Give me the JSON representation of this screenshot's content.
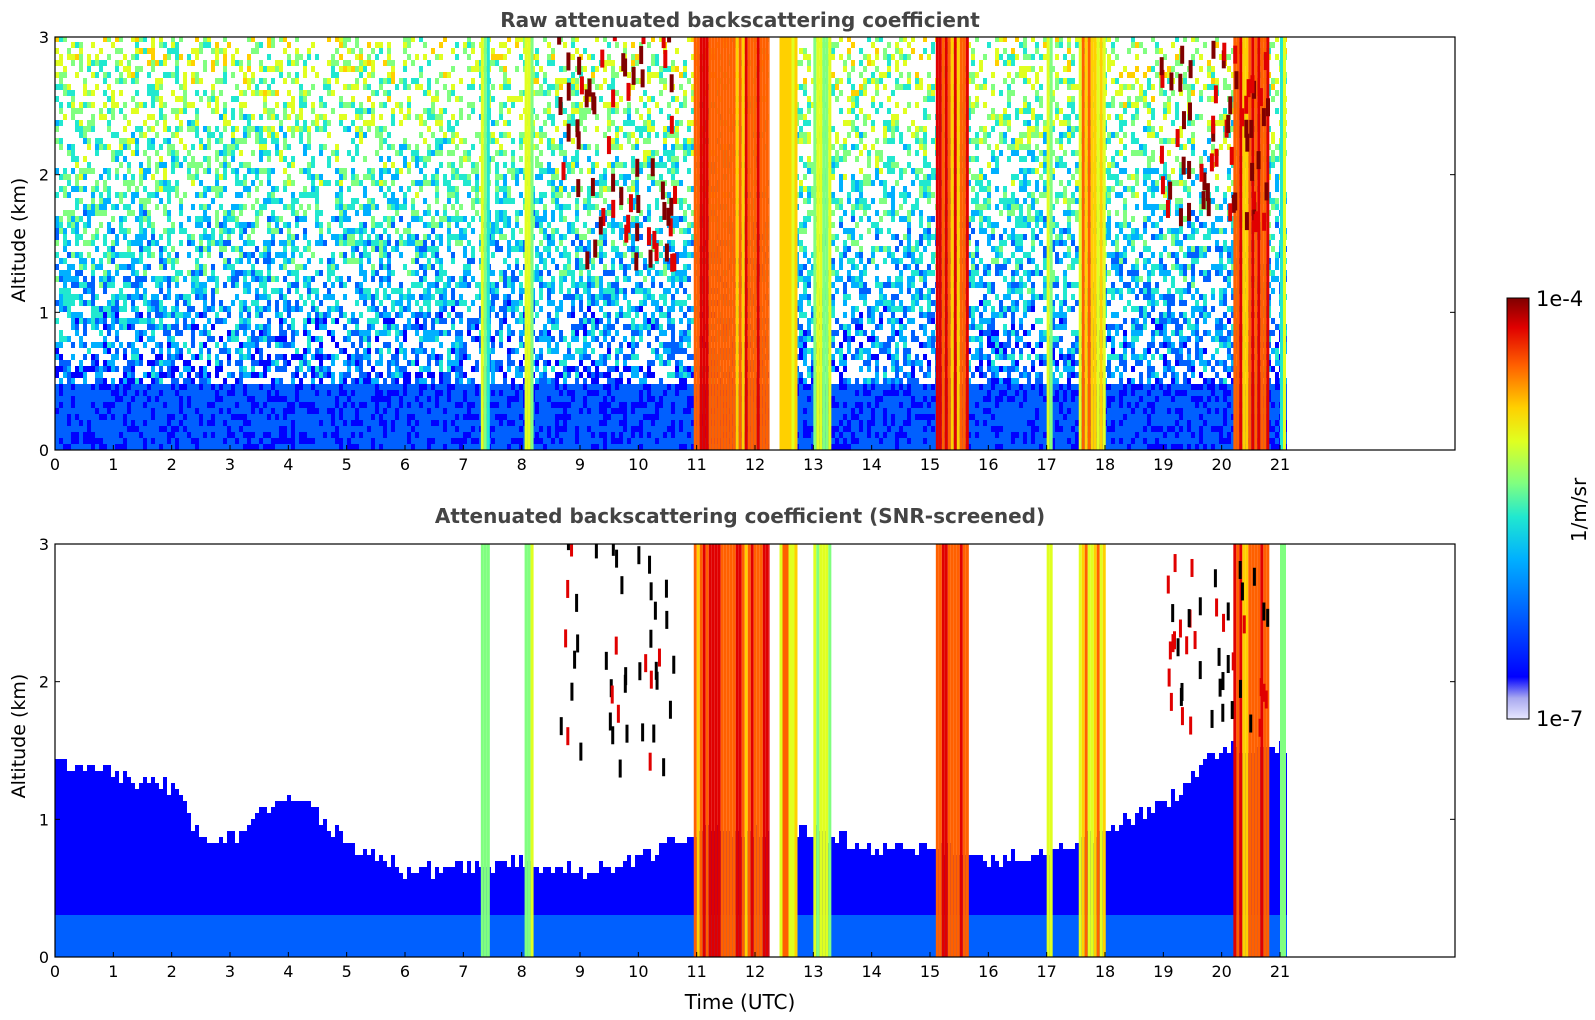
{
  "chart_data": [
    {
      "type": "heatmap",
      "title": "Raw attenuated backscattering coefficient",
      "xlabel": "",
      "ylabel": "Altitude (km)",
      "xlim": [
        0,
        24
      ],
      "ylim": [
        0,
        3
      ],
      "xticks": [
        "0",
        "1",
        "2",
        "3",
        "4",
        "5",
        "6",
        "7",
        "8",
        "9",
        "10",
        "11",
        "12",
        "13",
        "14",
        "15",
        "16",
        "17",
        "18",
        "19",
        "20",
        "21"
      ],
      "yticks": [
        "0",
        "1",
        "2",
        "3"
      ],
      "data_end_time": 21.1,
      "features": [
        {
          "name": "boundary-layer",
          "t0": 0.0,
          "t1": 21.1,
          "top_km": 0.45,
          "level": "low"
        },
        {
          "name": "noise-field",
          "t0": 0.0,
          "t1": 21.1,
          "level": "noisy"
        },
        {
          "name": "precip-shaft",
          "t0": 7.3,
          "t1": 7.45,
          "level": "medium"
        },
        {
          "name": "precip-shaft",
          "t0": 8.05,
          "t1": 8.2,
          "level": "medium"
        },
        {
          "name": "precip-shaft",
          "t0": 10.95,
          "t1": 12.25,
          "level": "high"
        },
        {
          "name": "gap",
          "t0": 12.25,
          "t1": 12.42,
          "level": "none"
        },
        {
          "name": "precip-shaft",
          "t0": 12.42,
          "t1": 12.7,
          "level": "medium-high"
        },
        {
          "name": "precip-shaft",
          "t0": 13.0,
          "t1": 13.3,
          "level": "medium"
        },
        {
          "name": "precip-shaft",
          "t0": 15.1,
          "t1": 15.65,
          "level": "high"
        },
        {
          "name": "precip-shaft",
          "t0": 17.0,
          "t1": 17.1,
          "level": "medium"
        },
        {
          "name": "precip-shaft",
          "t0": 17.55,
          "t1": 18.0,
          "level": "medium-high"
        },
        {
          "name": "precip-shaft",
          "t0": 20.2,
          "t1": 20.8,
          "level": "high"
        },
        {
          "name": "precip-shaft",
          "t0": 21.0,
          "t1": 21.1,
          "level": "medium"
        },
        {
          "name": "ice-cloud",
          "t0": 8.6,
          "t1": 10.6,
          "y0": 1.3,
          "y1": 3.0,
          "level": "high"
        },
        {
          "name": "ice-cloud",
          "t0": 18.9,
          "t1": 20.8,
          "y0": 1.6,
          "y1": 2.9,
          "level": "high"
        }
      ]
    },
    {
      "type": "heatmap",
      "title": "Attenuated backscattering coefficient (SNR-screened)",
      "xlabel": "Time (UTC)",
      "ylabel": "Altitude (km)",
      "xlim": [
        0,
        24
      ],
      "ylim": [
        0,
        3
      ],
      "xticks": [
        "0",
        "1",
        "2",
        "3",
        "4",
        "5",
        "6",
        "7",
        "8",
        "9",
        "10",
        "11",
        "12",
        "13",
        "14",
        "15",
        "16",
        "17",
        "18",
        "19",
        "20",
        "21"
      ],
      "yticks": [
        "0",
        "1",
        "2",
        "3"
      ],
      "data_end_time": 21.1,
      "screened_top_km": [
        {
          "t": 0,
          "km": 1.4
        },
        {
          "t": 1,
          "km": 1.3
        },
        {
          "t": 2,
          "km": 1.2
        },
        {
          "t": 2.5,
          "km": 0.85
        },
        {
          "t": 3,
          "km": 0.85
        },
        {
          "t": 4,
          "km": 1.2
        },
        {
          "t": 5,
          "km": 0.8
        },
        {
          "t": 6,
          "km": 0.6
        },
        {
          "t": 7,
          "km": 0.65
        },
        {
          "t": 8,
          "km": 0.65
        },
        {
          "t": 9,
          "km": 0.6
        },
        {
          "t": 10,
          "km": 0.7
        },
        {
          "t": 11,
          "km": 0.9
        },
        {
          "t": 13,
          "km": 0.9
        },
        {
          "t": 14,
          "km": 0.75
        },
        {
          "t": 15,
          "km": 0.8
        },
        {
          "t": 16,
          "km": 0.65
        },
        {
          "t": 17,
          "km": 0.75
        },
        {
          "t": 18,
          "km": 0.9
        },
        {
          "t": 19,
          "km": 1.1
        },
        {
          "t": 20,
          "km": 1.5
        },
        {
          "t": 21.1,
          "km": 1.5
        }
      ]
    }
  ],
  "colorbar": {
    "label": "1/m/sr",
    "max_label": "1e-4",
    "min_label": "1e-7",
    "colormap": "jet",
    "colors": [
      "#e8e8ff",
      "#a8a8f0",
      "#0000ff",
      "#0060ff",
      "#00b0ff",
      "#20e8d0",
      "#80ff80",
      "#e0ff20",
      "#ffd000",
      "#ff6000",
      "#e00000",
      "#800000"
    ]
  }
}
